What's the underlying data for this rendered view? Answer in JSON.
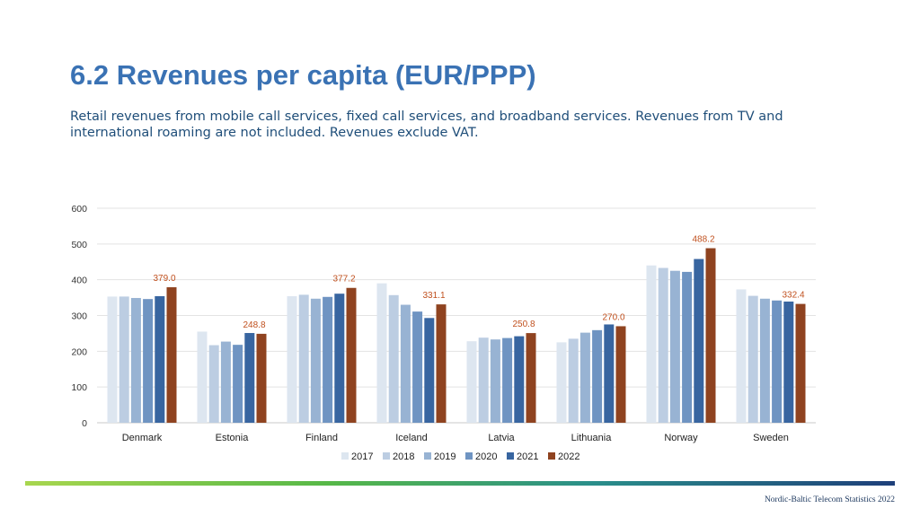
{
  "header": {
    "title": "6.2 Revenues per capita (EUR/PPP)",
    "subtitle": "Retail revenues from mobile call services, fixed call services, and broadband services. Revenues from TV and international roaming are not included. Revenues exclude VAT."
  },
  "footer": {
    "text": "Nordic-Baltic Telecom Statistics 2022"
  },
  "chart_data": {
    "type": "bar",
    "title": "",
    "xlabel": "",
    "ylabel": "",
    "ylim": [
      0,
      600
    ],
    "yticks": [
      0,
      100,
      200,
      300,
      400,
      500,
      600
    ],
    "grid": true,
    "legend": "bottom",
    "categories": [
      "Denmark",
      "Estonia",
      "Finland",
      "Iceland",
      "Latvia",
      "Lithuania",
      "Norway",
      "Sweden"
    ],
    "series": [
      {
        "name": "2017",
        "color": "#dde6f0",
        "values": [
          353,
          255,
          354,
          390,
          228,
          225,
          440,
          373
        ]
      },
      {
        "name": "2018",
        "color": "#bccde2",
        "values": [
          353,
          217,
          358,
          357,
          238,
          235,
          433,
          355
        ]
      },
      {
        "name": "2019",
        "color": "#98b3d3",
        "values": [
          349,
          227,
          347,
          330,
          233,
          252,
          425,
          347
        ]
      },
      {
        "name": "2020",
        "color": "#6f94c2",
        "values": [
          346,
          218,
          352,
          311,
          237,
          259,
          422,
          342
        ]
      },
      {
        "name": "2021",
        "color": "#3865a0",
        "values": [
          354,
          251,
          361,
          293,
          242,
          275,
          458,
          339
        ]
      },
      {
        "name": "2022",
        "color": "#8f4320",
        "values": [
          379.0,
          248.8,
          377.2,
          331.1,
          250.8,
          270.0,
          488.2,
          332.4
        ]
      }
    ],
    "data_labels": {
      "series": "2022",
      "color": "#c0501e",
      "texts": [
        "379.0",
        "248.8",
        "377.2",
        "331.1",
        "250.8",
        "270.0",
        "488.2",
        "332.4"
      ]
    }
  }
}
